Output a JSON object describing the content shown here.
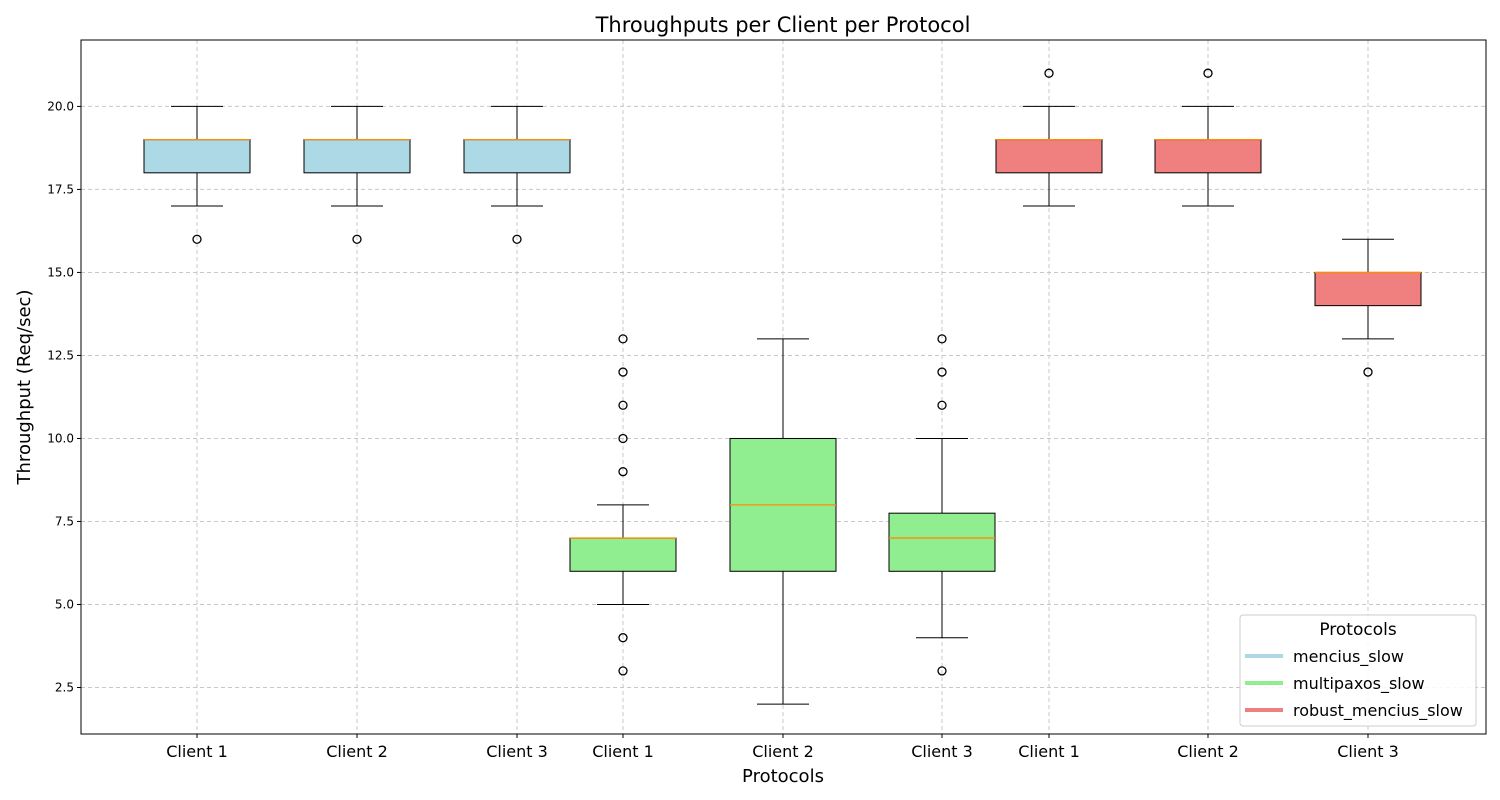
{
  "chart_data": {
    "type": "boxplot",
    "title": "Throughputs per Client per Protocol",
    "xlabel": "Protocols",
    "ylabel": "Throughput (Req/sec)",
    "ylim": [
      1.1,
      22.0
    ],
    "yticks": [
      2.5,
      5.0,
      7.5,
      10.0,
      12.5,
      15.0,
      17.5,
      20.0
    ],
    "ytick_labels": [
      "2.5",
      "5.0",
      "7.5",
      "10.0",
      "12.5",
      "15.0",
      "17.5",
      "20.0"
    ],
    "grid": true,
    "legend": {
      "title": "Protocols",
      "position": "bottom-right"
    },
    "series": [
      {
        "name": "mencius_slow",
        "color": "#add8e6",
        "boxes": [
          {
            "category": "Client 1",
            "whisker_low": 17,
            "q1": 18,
            "median": 19,
            "q3": 19,
            "whisker_high": 20,
            "outliers": [
              16
            ]
          },
          {
            "category": "Client 2",
            "whisker_low": 17,
            "q1": 18,
            "median": 19,
            "q3": 19,
            "whisker_high": 20,
            "outliers": [
              16
            ]
          },
          {
            "category": "Client 3",
            "whisker_low": 17,
            "q1": 18,
            "median": 19,
            "q3": 19,
            "whisker_high": 20,
            "outliers": [
              16
            ]
          }
        ]
      },
      {
        "name": "multipaxos_slow",
        "color": "#90ee90",
        "boxes": [
          {
            "category": "Client 1",
            "whisker_low": 5,
            "q1": 6,
            "median": 7,
            "q3": 7,
            "whisker_high": 8,
            "outliers": [
              3,
              4,
              9,
              10,
              11,
              12,
              13
            ]
          },
          {
            "category": "Client 2",
            "whisker_low": 2,
            "q1": 6,
            "median": 8,
            "q3": 10,
            "whisker_high": 13,
            "outliers": []
          },
          {
            "category": "Client 3",
            "whisker_low": 4,
            "q1": 6,
            "median": 7,
            "q3": 7.75,
            "whisker_high": 10,
            "outliers": [
              3,
              11,
              12,
              13
            ]
          }
        ]
      },
      {
        "name": "robust_mencius_slow",
        "color": "#f08080",
        "boxes": [
          {
            "category": "Client 1",
            "whisker_low": 17,
            "q1": 18,
            "median": 19,
            "q3": 19,
            "whisker_high": 20,
            "outliers": [
              21
            ]
          },
          {
            "category": "Client 2",
            "whisker_low": 17,
            "q1": 18,
            "median": 19,
            "q3": 19,
            "whisker_high": 20,
            "outliers": [
              21
            ]
          },
          {
            "category": "Client 3",
            "whisker_low": 13,
            "q1": 14,
            "median": 15,
            "q3": 15,
            "whisker_high": 16,
            "outliers": [
              12
            ]
          }
        ]
      }
    ]
  }
}
